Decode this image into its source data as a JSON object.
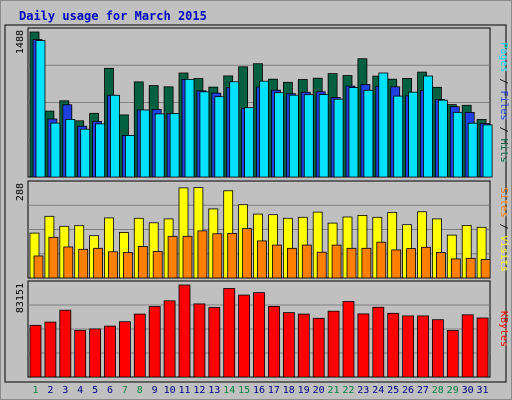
{
  "chart_data": [
    {
      "type": "bar",
      "title": "Daily usage for March 2015",
      "categories": [
        "1",
        "2",
        "3",
        "4",
        "5",
        "6",
        "7",
        "8",
        "9",
        "10",
        "11",
        "12",
        "13",
        "14",
        "15",
        "16",
        "17",
        "18",
        "19",
        "20",
        "21",
        "22",
        "23",
        "24",
        "25",
        "26",
        "27",
        "28",
        "29",
        "30",
        "31"
      ],
      "weekend_days": [
        "1",
        "7",
        "8",
        "14",
        "15",
        "21",
        "22",
        "28",
        "29"
      ],
      "ylabel_parts": [
        "Pages",
        "Files",
        "Hits"
      ],
      "ymax_label": "1488",
      "ylim": [
        0,
        1488
      ],
      "series": [
        {
          "name": "Hits",
          "color": "#006040",
          "values": [
            1488,
            676,
            782,
            577,
            654,
            1115,
            637,
            976,
            938,
            926,
            1067,
            1011,
            923,
            1037,
            1131,
            1163,
            1004,
            972,
            1001,
            1014,
            1061,
            1042,
            1214,
            1035,
            1004,
            1012,
            1077,
            920,
            743,
            736,
            590
          ]
        },
        {
          "name": "Files",
          "color": "#2040e0",
          "values": [
            1410,
            595,
            741,
            521,
            570,
            838,
            427,
            688,
            694,
            652,
            1002,
            885,
            861,
            919,
            705,
            923,
            891,
            855,
            869,
            874,
            817,
            933,
            949,
            930,
            926,
            833,
            889,
            796,
            721,
            663,
            549
          ]
        },
        {
          "name": "Pages",
          "color": "#00e0ff",
          "values": [
            1400,
            553,
            591,
            491,
            545,
            838,
            426,
            688,
            648,
            652,
            1002,
            874,
            824,
            977,
            711,
            983,
            865,
            839,
            845,
            846,
            798,
            917,
            890,
            1067,
            830,
            870,
            1036,
            788,
            663,
            552,
            535
          ]
        }
      ]
    },
    {
      "type": "bar",
      "ylabel_parts": [
        "Sites",
        "Visits"
      ],
      "ymax_label": "288",
      "ylim": [
        0,
        288
      ],
      "series": [
        {
          "name": "Visits",
          "color": "#ffff00",
          "values": [
            139,
            191,
            160,
            162,
            131,
            186,
            141,
            185,
            171,
            183,
            279,
            280,
            214,
            270,
            227,
            198,
            196,
            185,
            188,
            204,
            170,
            189,
            194,
            188,
            203,
            165,
            205,
            183,
            133,
            163,
            157
          ]
        },
        {
          "name": "Sites",
          "color": "#ff8000",
          "values": [
            68,
            126,
            96,
            89,
            92,
            81,
            79,
            98,
            82,
            129,
            129,
            146,
            137,
            138,
            153,
            115,
            102,
            92,
            102,
            80,
            102,
            92,
            92,
            111,
            87,
            91,
            95,
            79,
            59,
            61,
            57
          ]
        }
      ]
    },
    {
      "type": "bar",
      "ylabel_parts": [
        "KBytes"
      ],
      "ymax_label": "83151",
      "ylim": [
        0,
        83151
      ],
      "series": [
        {
          "name": "KBytes",
          "color": "#ff0000",
          "values": [
            46730,
            49612,
            60418,
            42213,
            43502,
            46040,
            50021,
            56838,
            63750,
            68869,
            83151,
            66114,
            62789,
            80030,
            74049,
            76327,
            63850,
            58213,
            56832,
            53021,
            59437,
            68235,
            57040,
            63014,
            57538,
            55211,
            55211,
            51826,
            42009,
            56240,
            53300
          ]
        }
      ]
    }
  ]
}
